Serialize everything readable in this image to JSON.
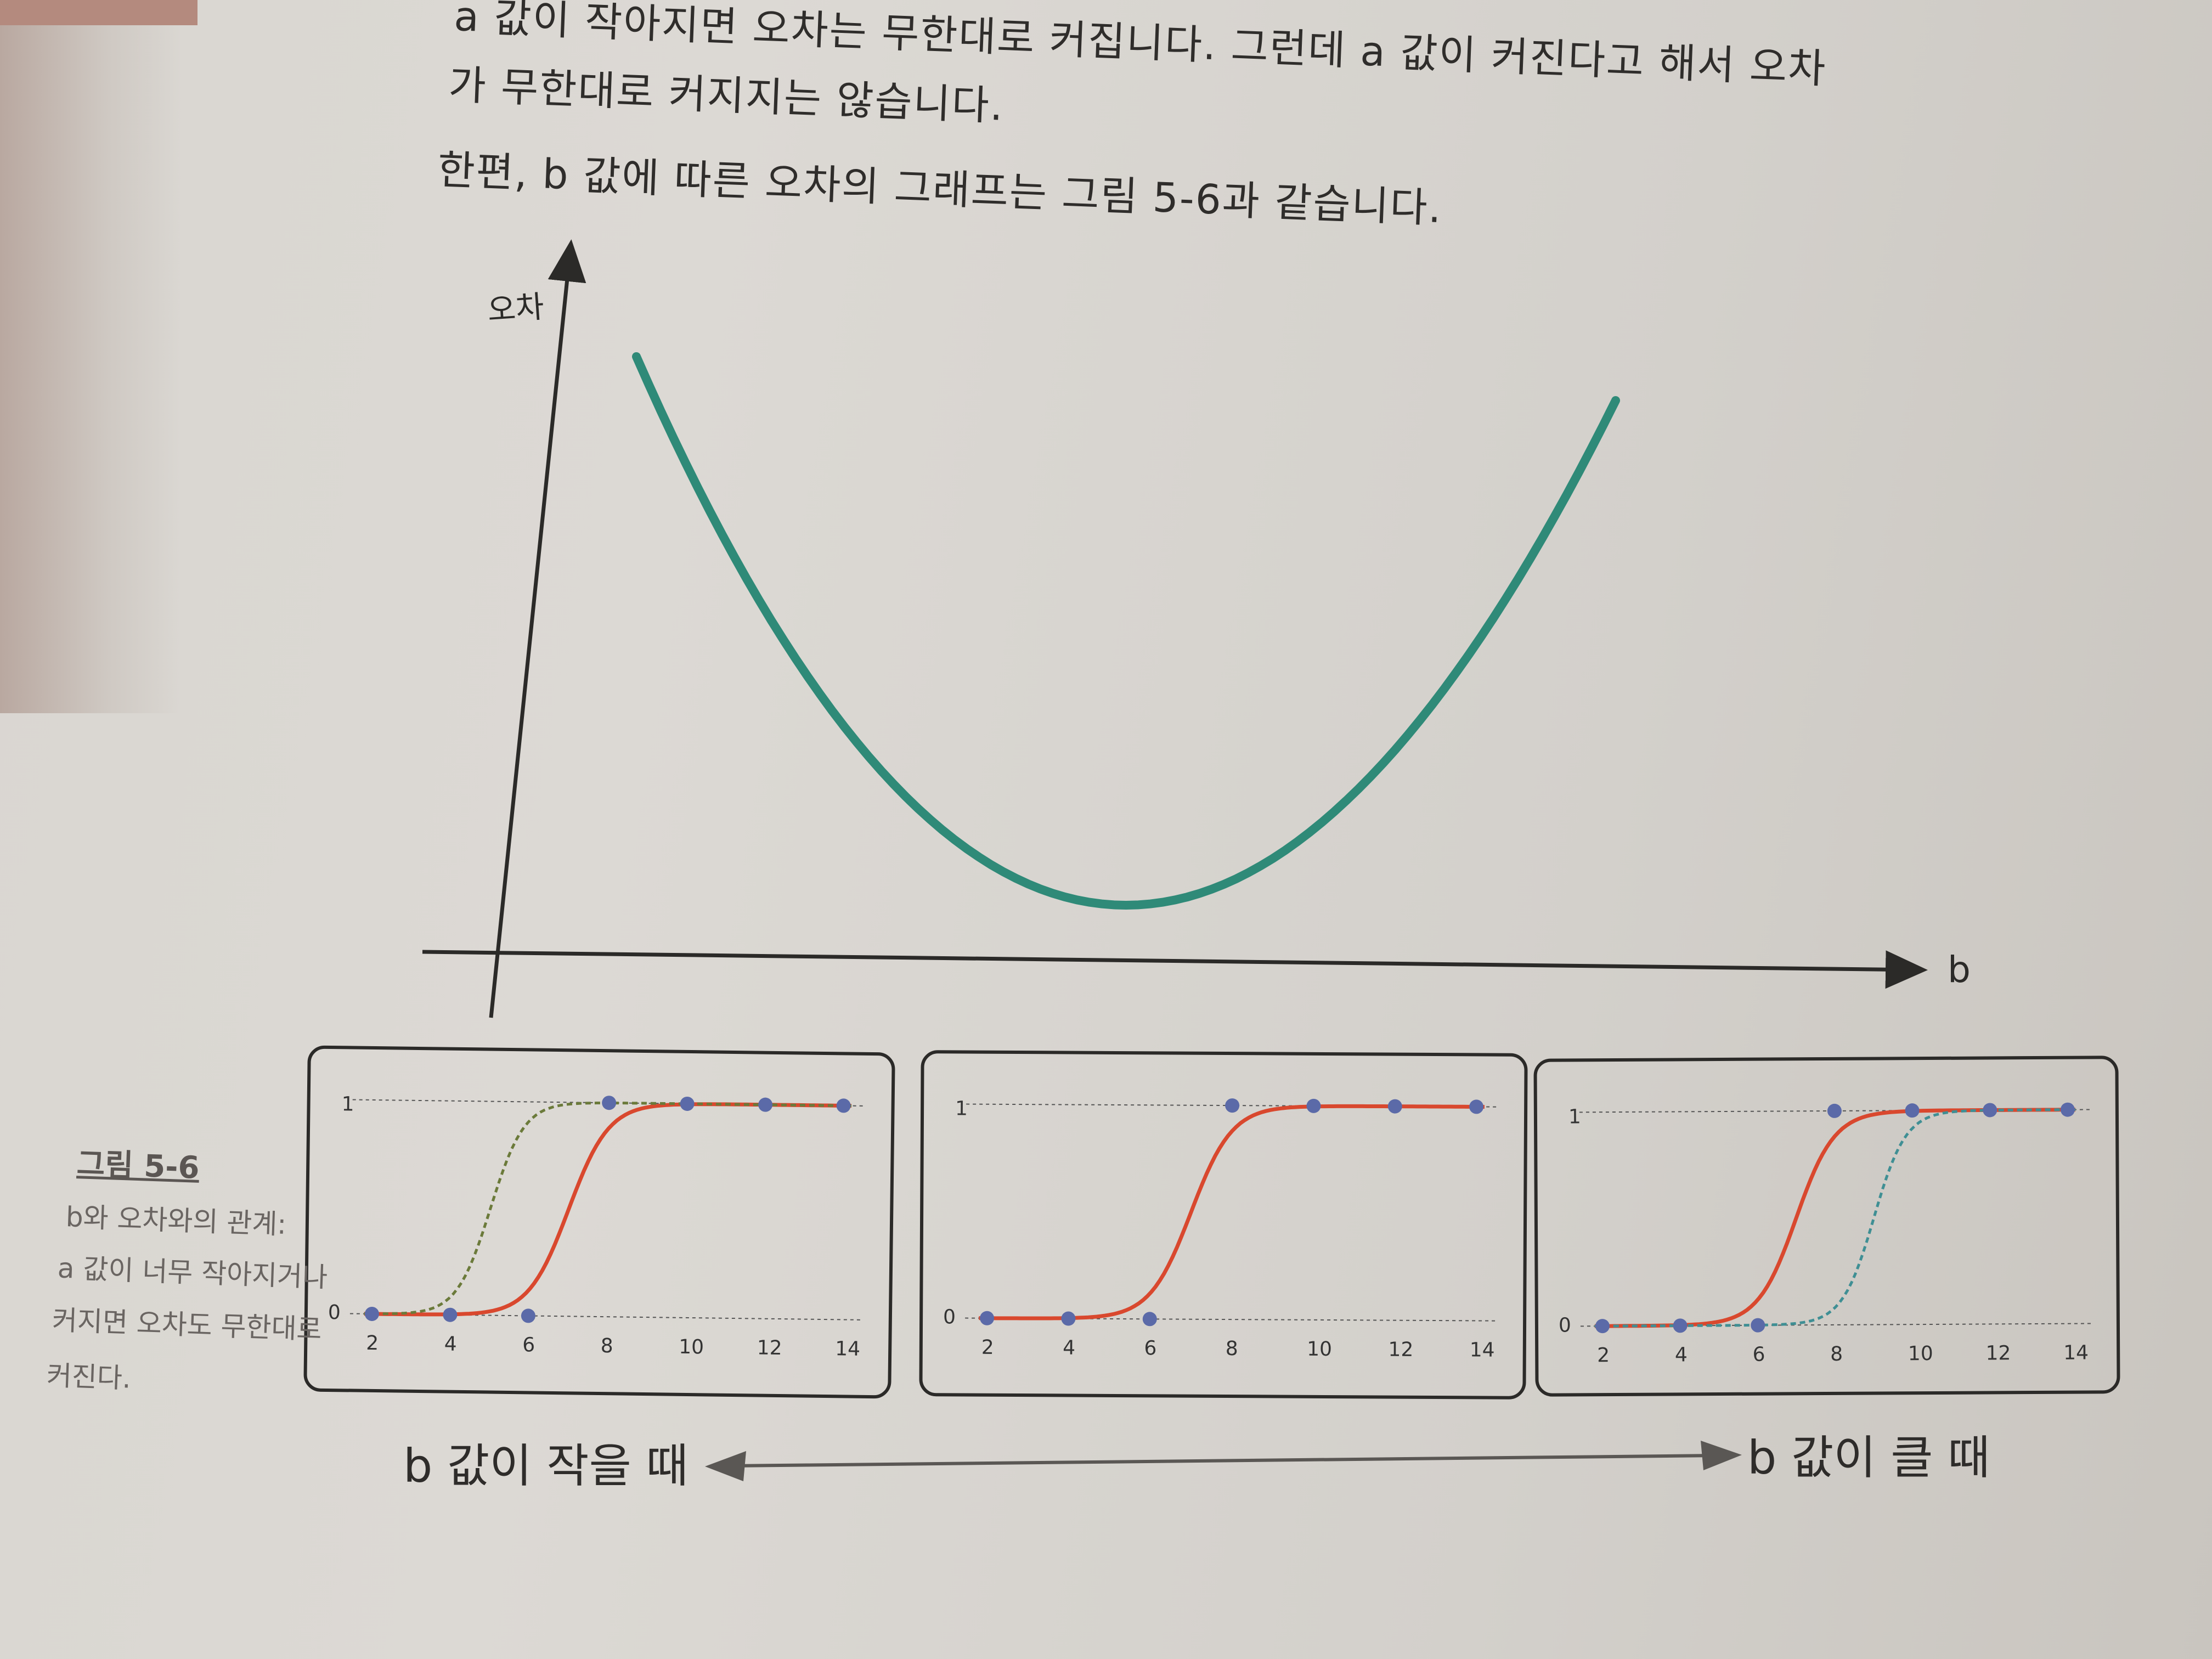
{
  "body_text": {
    "line1": "a 값이 작아지면 오차는 무한대로 커집니다. 그런데 a 값이 커진다고 해서 오차",
    "line2": "가 무한대로 커지지는 않습니다.",
    "line3": "한편, b 값에 따른 오차의 그래프는 그림 5-6과 같습니다."
  },
  "main_chart": {
    "ylabel": "오차",
    "xlabel": "b"
  },
  "caption": {
    "title": "그림 5-6",
    "lines": [
      "b와 오차와의 관계:",
      "a 값이 너무 작아지거나",
      "커지면 오차도 무한대로",
      "커진다."
    ]
  },
  "panels": {
    "y_ticks": [
      "0",
      "1"
    ],
    "x_ticks": [
      "2",
      "4",
      "6",
      "8",
      "10",
      "12",
      "14"
    ]
  },
  "bottom_arrow": {
    "left_label": "b 값이 작을 때",
    "right_label": "b 값이 클 때"
  },
  "chart_data": [
    {
      "type": "line",
      "description": "U-shaped error curve vs b",
      "xlabel": "b",
      "ylabel": "오차",
      "series": [
        {
          "x": [
            0,
            1,
            2,
            3,
            4,
            5,
            6,
            7,
            8,
            9,
            10
          ],
          "values": [
            10,
            6.4,
            3.6,
            1.6,
            0.4,
            0,
            0.4,
            1.6,
            3.6,
            6.4,
            10
          ]
        }
      ],
      "colors": [
        "#2f8a78"
      ]
    },
    {
      "type": "line",
      "x": [
        2,
        4,
        6,
        8,
        10,
        12,
        14
      ],
      "points": [
        0,
        0,
        0,
        1,
        1,
        1,
        1
      ],
      "series": [
        {
          "name": "",
          "style": "solid",
          "color": "#d9482e",
          "center": 7
        },
        {
          "name": "",
          "style": "dashed",
          "color": "#6b7a3a",
          "center": 5
        }
      ],
      "ylim": [
        0,
        1
      ]
    },
    {
      "type": "line",
      "x": [
        2,
        4,
        6,
        8,
        10,
        12,
        14
      ],
      "points": [
        0,
        0,
        0,
        1,
        1,
        1,
        1
      ],
      "series": [
        {
          "name": "",
          "style": "solid",
          "color": "#d9482e",
          "center": 7
        }
      ],
      "ylim": [
        0,
        1
      ]
    },
    {
      "type": "line",
      "x": [
        2,
        4,
        6,
        8,
        10,
        12,
        14
      ],
      "points": [
        0,
        0,
        0,
        1,
        1,
        1,
        1
      ],
      "series": [
        {
          "name": "",
          "style": "solid",
          "color": "#d9482e",
          "center": 7
        },
        {
          "name": "",
          "style": "dashed",
          "color": "#3f8f94",
          "center": 9
        }
      ],
      "ylim": [
        0,
        1
      ]
    }
  ],
  "colors": {
    "curve": "#2f8a78",
    "sigmoid": "#d9482e",
    "dashed_left": "#6b7a3a",
    "dashed_right": "#3f8f94",
    "dot": "#5b6aa8",
    "ink": "#2b2a28"
  }
}
